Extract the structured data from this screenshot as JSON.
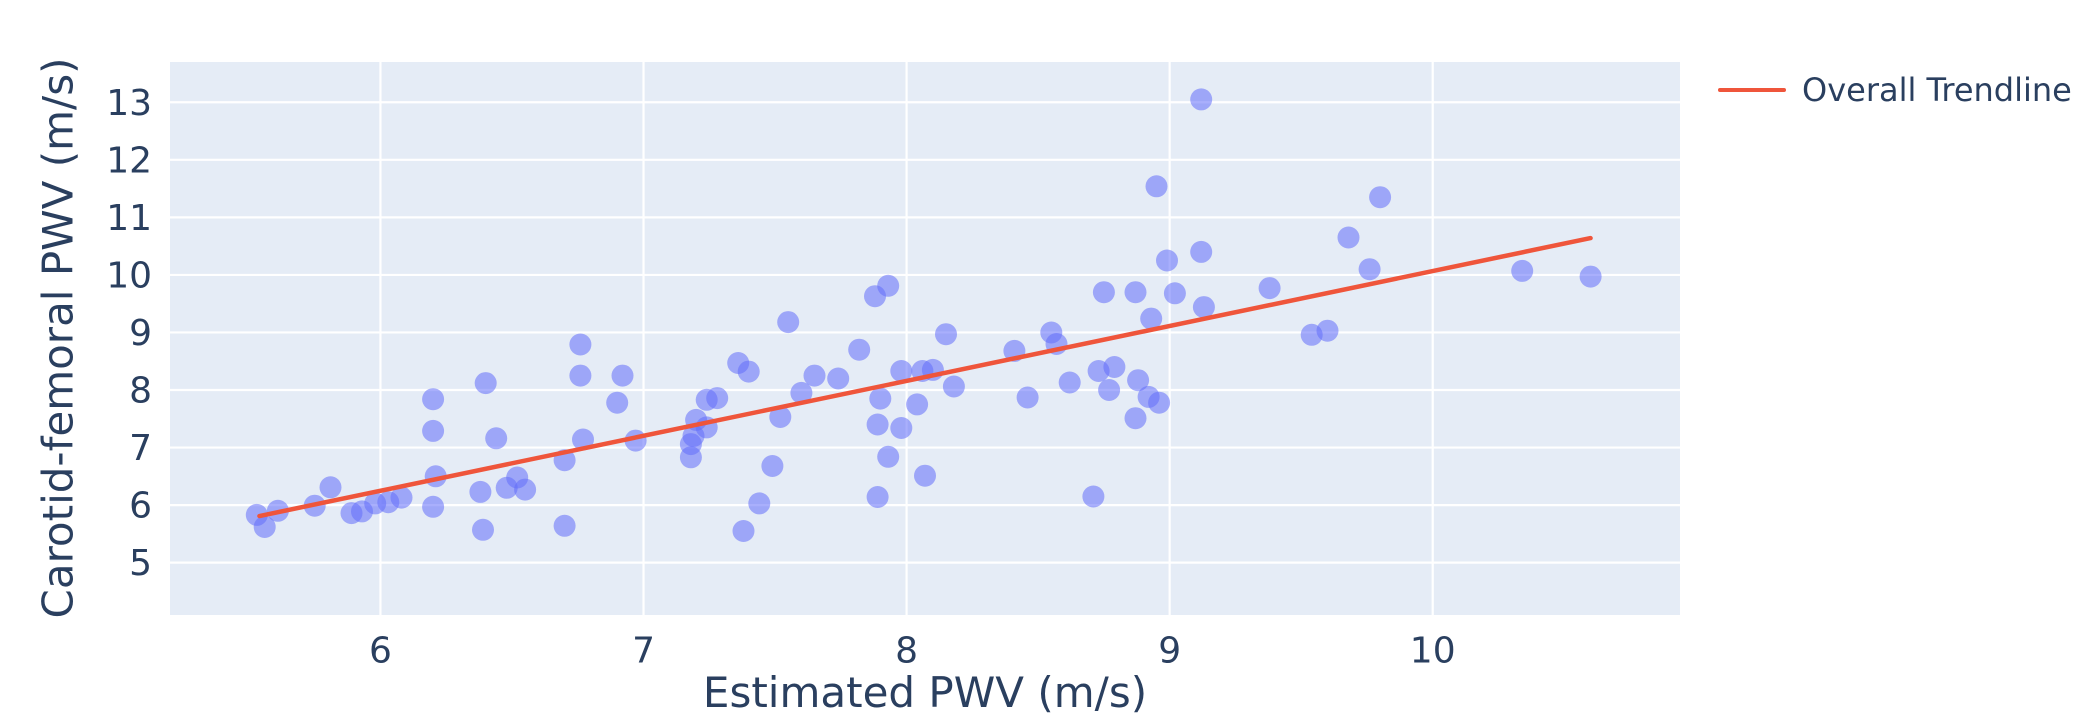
{
  "chart_data": {
    "type": "scatter",
    "title": "",
    "xlabel": "Estimated PWV (m/s)",
    "ylabel": "Carotid-femoral PWV (m/s)",
    "xlim": [
      5.2,
      10.94
    ],
    "ylim": [
      4.09,
      13.7
    ],
    "x_ticks": [
      6,
      7,
      8,
      9,
      10
    ],
    "y_ticks": [
      5,
      6,
      7,
      8,
      9,
      10,
      11,
      12,
      13
    ],
    "grid": true,
    "legend_position": "top-right",
    "legend": [
      {
        "label": "Overall Trendline",
        "type": "line",
        "color": "#ef553b"
      }
    ],
    "series": [
      {
        "name": "scatter-points",
        "type": "scatter",
        "marker_color": "#636efa",
        "marker_opacity": 0.55,
        "marker_radius": 11,
        "points": [
          [
            5.53,
            5.83
          ],
          [
            5.56,
            5.62
          ],
          [
            5.61,
            5.9
          ],
          [
            5.75,
            5.99
          ],
          [
            5.81,
            6.31
          ],
          [
            5.89,
            5.86
          ],
          [
            5.93,
            5.89
          ],
          [
            5.98,
            6.03
          ],
          [
            6.03,
            6.05
          ],
          [
            6.08,
            6.13
          ],
          [
            6.2,
            7.84
          ],
          [
            6.2,
            7.29
          ],
          [
            6.21,
            6.5
          ],
          [
            6.2,
            5.97
          ],
          [
            6.38,
            6.23
          ],
          [
            6.39,
            5.57
          ],
          [
            6.4,
            8.12
          ],
          [
            6.44,
            7.16
          ],
          [
            6.48,
            6.3
          ],
          [
            6.52,
            6.48
          ],
          [
            6.55,
            6.27
          ],
          [
            6.7,
            5.64
          ],
          [
            6.7,
            6.78
          ],
          [
            6.76,
            8.79
          ],
          [
            6.76,
            8.25
          ],
          [
            6.77,
            7.14
          ],
          [
            6.9,
            7.78
          ],
          [
            6.92,
            8.25
          ],
          [
            6.97,
            7.12
          ],
          [
            7.2,
            7.48
          ],
          [
            7.24,
            7.35
          ],
          [
            7.19,
            7.2
          ],
          [
            7.18,
            7.06
          ],
          [
            7.18,
            6.83
          ],
          [
            7.24,
            7.83
          ],
          [
            7.28,
            7.86
          ],
          [
            7.36,
            8.47
          ],
          [
            7.4,
            8.32
          ],
          [
            7.38,
            5.55
          ],
          [
            7.44,
            6.03
          ],
          [
            7.49,
            6.68
          ],
          [
            7.52,
            7.53
          ],
          [
            7.55,
            9.18
          ],
          [
            7.6,
            7.95
          ],
          [
            7.65,
            8.25
          ],
          [
            7.74,
            8.2
          ],
          [
            7.82,
            8.7
          ],
          [
            7.88,
            9.63
          ],
          [
            7.93,
            9.81
          ],
          [
            7.89,
            7.4
          ],
          [
            7.9,
            7.85
          ],
          [
            7.93,
            6.84
          ],
          [
            7.89,
            6.14
          ],
          [
            7.98,
            7.34
          ],
          [
            7.98,
            8.33
          ],
          [
            8.04,
            7.75
          ],
          [
            8.07,
            6.51
          ],
          [
            8.06,
            8.33
          ],
          [
            8.1,
            8.35
          ],
          [
            8.15,
            8.97
          ],
          [
            8.18,
            8.06
          ],
          [
            8.41,
            8.68
          ],
          [
            8.46,
            7.87
          ],
          [
            8.55,
            9.0
          ],
          [
            8.57,
            8.8
          ],
          [
            8.62,
            8.13
          ],
          [
            8.71,
            6.15
          ],
          [
            8.73,
            8.33
          ],
          [
            8.79,
            8.4
          ],
          [
            8.77,
            8.0
          ],
          [
            8.88,
            8.17
          ],
          [
            8.92,
            7.88
          ],
          [
            8.96,
            7.78
          ],
          [
            8.87,
            7.51
          ],
          [
            8.75,
            9.7
          ],
          [
            8.87,
            9.7
          ],
          [
            8.93,
            9.24
          ],
          [
            9.02,
            9.68
          ],
          [
            8.95,
            11.54
          ],
          [
            8.99,
            10.25
          ],
          [
            9.12,
            13.05
          ],
          [
            9.12,
            10.4
          ],
          [
            9.13,
            9.44
          ],
          [
            9.38,
            9.77
          ],
          [
            9.54,
            8.96
          ],
          [
            9.6,
            9.03
          ],
          [
            9.68,
            10.65
          ],
          [
            9.76,
            10.1
          ],
          [
            9.8,
            11.35
          ],
          [
            10.34,
            10.07
          ],
          [
            10.6,
            9.97
          ]
        ]
      },
      {
        "name": "Overall Trendline",
        "type": "line",
        "color": "#ef553b",
        "line_width": 4.5,
        "points": [
          [
            5.54,
            5.81
          ],
          [
            10.6,
            10.64
          ]
        ]
      }
    ]
  },
  "colors": {
    "plot_background": "#e5ecf6",
    "grid": "#ffffff",
    "text": "#2a3f5f",
    "marker": "#636efa",
    "trendline": "#ef553b"
  }
}
